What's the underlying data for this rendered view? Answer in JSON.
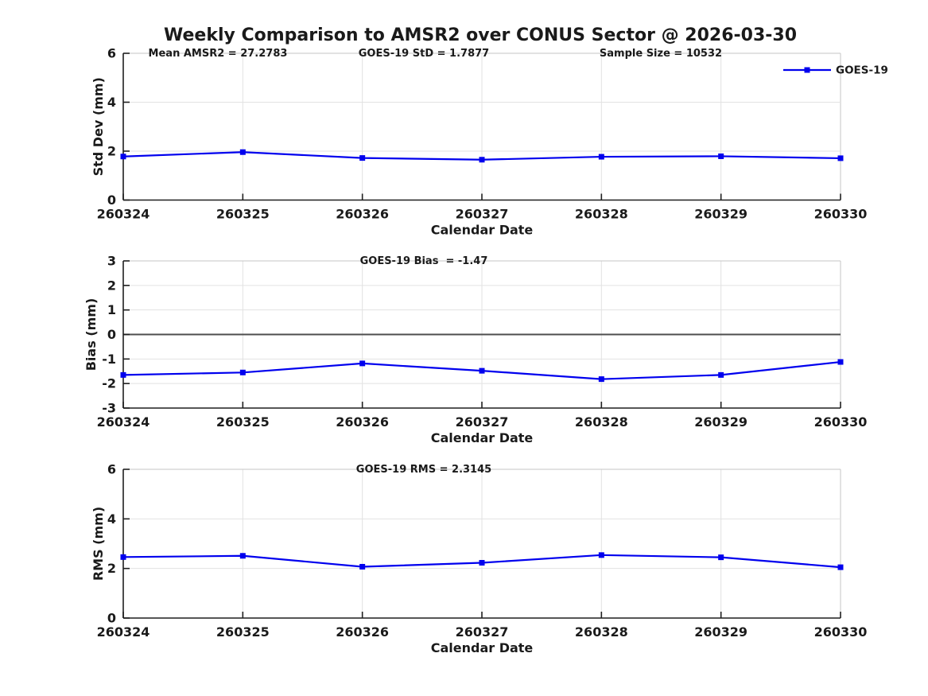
{
  "title": "Weekly Comparison to AMSR2 over CONUS Sector @ 2026-03-30",
  "legend": {
    "label": "GOES-19"
  },
  "colors": {
    "line": "#0000ee",
    "marker": "#0000ee",
    "axis": "#1f1f1f",
    "grid": "#e2e2e2",
    "box_light": "#c6c6c6",
    "zero_line": "#4d4d4d",
    "text": "#1a1a1a"
  },
  "chart_data": [
    {
      "type": "line",
      "ylabel": "Std Dev (mm)",
      "xlabel": "Calendar Date",
      "ylim": [
        0,
        6
      ],
      "yticks": [
        0,
        2,
        4,
        6
      ],
      "categories": [
        "260324",
        "260325",
        "260326",
        "260327",
        "260328",
        "260329",
        "260330"
      ],
      "series": [
        {
          "name": "GOES-19",
          "values": [
            1.78,
            1.96,
            1.72,
            1.65,
            1.77,
            1.79,
            1.71
          ]
        }
      ],
      "annotations": [
        {
          "text": "Mean AMSR2 = 27.2783",
          "cx": 274
        },
        {
          "text": "GOES-19 StD = 1.7877",
          "cx": 533
        },
        {
          "text": "Sample Size = 10532",
          "cx": 831
        }
      ],
      "zero_line": false,
      "show_legend": true,
      "legend_position": "top-right",
      "grid": true
    },
    {
      "type": "line",
      "ylabel": "Bias (mm)",
      "xlabel": "Calendar Date",
      "ylim": [
        -3,
        3
      ],
      "yticks": [
        -3,
        -2,
        -1,
        0,
        1,
        2,
        3
      ],
      "categories": [
        "260324",
        "260325",
        "260326",
        "260327",
        "260328",
        "260329",
        "260330"
      ],
      "series": [
        {
          "name": "GOES-19",
          "values": [
            -1.65,
            -1.55,
            -1.18,
            -1.48,
            -1.82,
            -1.65,
            -1.12
          ]
        }
      ],
      "annotations": [
        {
          "text": "GOES-19 Bias  = -1.47",
          "cx": 533
        }
      ],
      "zero_line": true,
      "show_legend": false,
      "grid": true
    },
    {
      "type": "line",
      "ylabel": "RMS (mm)",
      "xlabel": "Calendar Date",
      "ylim": [
        0,
        6
      ],
      "yticks": [
        0,
        2,
        4,
        6
      ],
      "categories": [
        "260324",
        "260325",
        "260326",
        "260327",
        "260328",
        "260329",
        "260330"
      ],
      "series": [
        {
          "name": "GOES-19",
          "values": [
            2.46,
            2.51,
            2.07,
            2.23,
            2.54,
            2.45,
            2.05
          ]
        }
      ],
      "annotations": [
        {
          "text": "GOES-19 RMS = 2.3145",
          "cx": 533
        }
      ],
      "zero_line": false,
      "show_legend": false,
      "grid": true
    }
  ]
}
